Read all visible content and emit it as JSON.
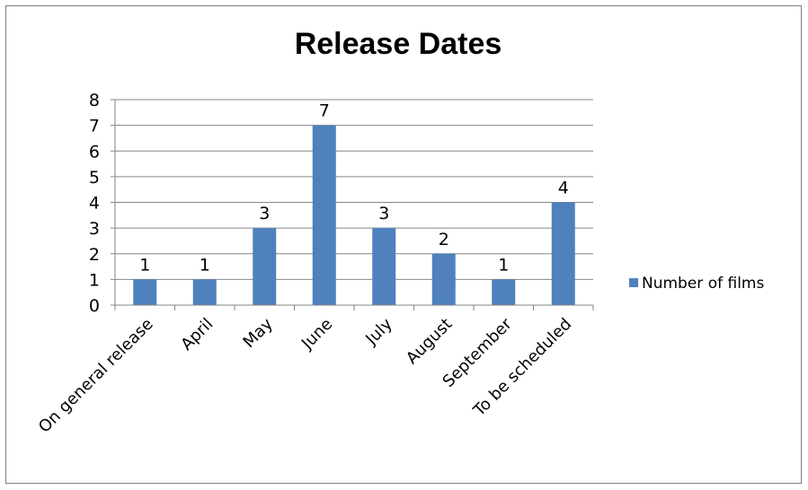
{
  "chart_data": {
    "type": "bar",
    "title": "Release Dates",
    "categories": [
      "On general release",
      "April",
      "May",
      "June",
      "July",
      "August",
      "September",
      "To be scheduled"
    ],
    "series": [
      {
        "name": "Number of films",
        "values": [
          1,
          1,
          3,
          7,
          3,
          2,
          1,
          4
        ],
        "color": "#4f81bd"
      }
    ],
    "ylim": [
      0,
      8
    ],
    "yticks": [
      "0",
      "1",
      "2",
      "3",
      "4",
      "5",
      "6",
      "7",
      "8"
    ],
    "grid": true,
    "legend_position": "right",
    "data_labels": true
  }
}
